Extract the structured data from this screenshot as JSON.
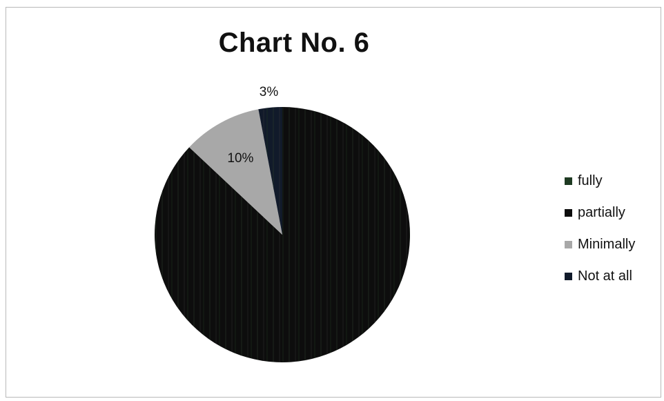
{
  "chart_data": {
    "type": "pie",
    "title": "Chart No. 6",
    "categories": [
      "fully",
      "partially",
      "Minimally",
      "Not at all"
    ],
    "values": [
      0,
      87,
      10,
      3
    ],
    "data_labels": [
      "",
      "",
      "10%",
      "3%"
    ],
    "colors": [
      "#1e3a22",
      "#0d0d0d",
      "#a8a8a8",
      "#111a2a"
    ],
    "legend_position": "right"
  }
}
